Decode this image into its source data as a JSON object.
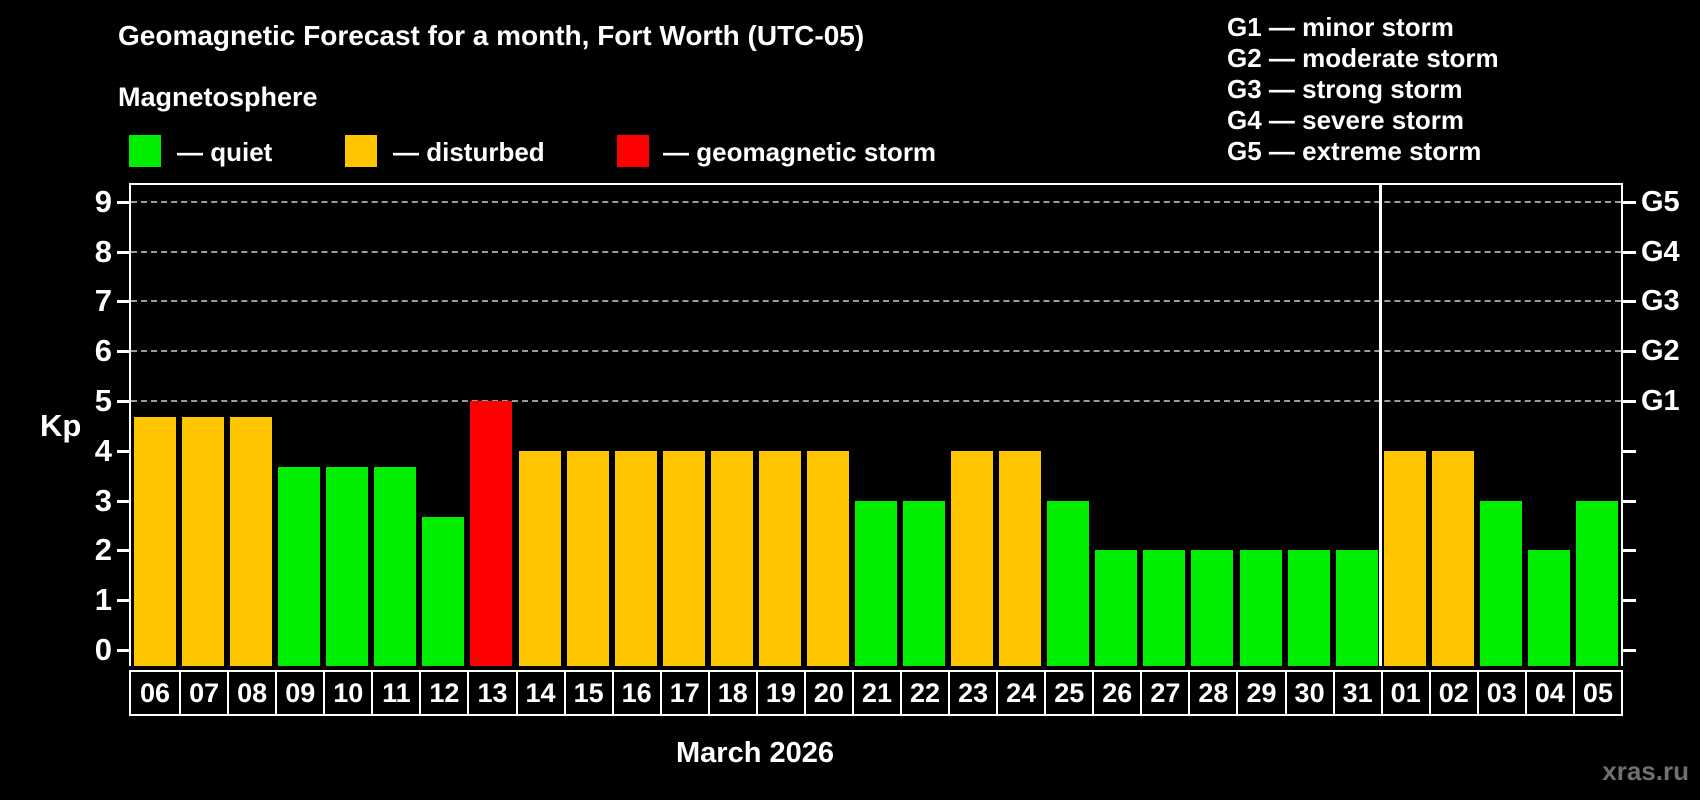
{
  "title": "Geomagnetic Forecast for a month, Fort Worth (UTC-05)",
  "subtitle": "Magnetosphere",
  "legend": {
    "items": [
      {
        "key": "quiet",
        "label": "— quiet",
        "color": "#00ee00"
      },
      {
        "key": "disturbed",
        "label": "— disturbed",
        "color": "#ffc400"
      },
      {
        "key": "storm",
        "label": "— geomagnetic storm",
        "color": "#ff0000"
      }
    ]
  },
  "storm_scale": [
    "G1 — minor storm",
    "G2 — moderate storm",
    "G3 — strong storm",
    "G4 — severe storm",
    "G5 — extreme storm"
  ],
  "y_axis": {
    "label": "Kp",
    "ticks": [
      0,
      1,
      2,
      3,
      4,
      5,
      6,
      7,
      8,
      9
    ]
  },
  "right_axis": {
    "labels": [
      {
        "text": "G1",
        "kp": 5
      },
      {
        "text": "G2",
        "kp": 6
      },
      {
        "text": "G3",
        "kp": 7
      },
      {
        "text": "G4",
        "kp": 8
      },
      {
        "text": "G5",
        "kp": 9
      }
    ]
  },
  "month_label": "March 2026",
  "watermark": "xras.ru",
  "chart_data": {
    "type": "bar",
    "title": "Geomagnetic Forecast for a month, Fort Worth (UTC-05)",
    "xlabel": "March 2026",
    "ylabel": "Kp",
    "ylim": [
      0,
      9
    ],
    "gridlines_at_kp": [
      5,
      6,
      7,
      8,
      9
    ],
    "legend_position": "top",
    "categories": [
      "06",
      "07",
      "08",
      "09",
      "10",
      "11",
      "12",
      "13",
      "14",
      "15",
      "16",
      "17",
      "18",
      "19",
      "20",
      "21",
      "22",
      "23",
      "24",
      "25",
      "26",
      "27",
      "28",
      "29",
      "30",
      "31",
      "01",
      "02",
      "03",
      "04",
      "05"
    ],
    "values": [
      4.67,
      4.67,
      4.67,
      3.67,
      3.67,
      3.67,
      2.67,
      5.0,
      4.0,
      4.0,
      4.0,
      4.0,
      4.0,
      4.0,
      4.0,
      3.0,
      3.0,
      4.0,
      4.0,
      3.0,
      2.0,
      2.0,
      2.0,
      2.0,
      2.0,
      2.0,
      4.0,
      4.0,
      3.0,
      2.0,
      3.0
    ],
    "statuses": [
      "disturbed",
      "disturbed",
      "disturbed",
      "quiet",
      "quiet",
      "quiet",
      "quiet",
      "storm",
      "disturbed",
      "disturbed",
      "disturbed",
      "disturbed",
      "disturbed",
      "disturbed",
      "disturbed",
      "quiet",
      "quiet",
      "disturbed",
      "disturbed",
      "quiet",
      "quiet",
      "quiet",
      "quiet",
      "quiet",
      "quiet",
      "quiet",
      "disturbed",
      "disturbed",
      "quiet",
      "quiet",
      "quiet"
    ],
    "status_colors": {
      "quiet": "#00ee00",
      "disturbed": "#ffc400",
      "storm": "#ff0000"
    },
    "month_separator_after_index": 25
  }
}
